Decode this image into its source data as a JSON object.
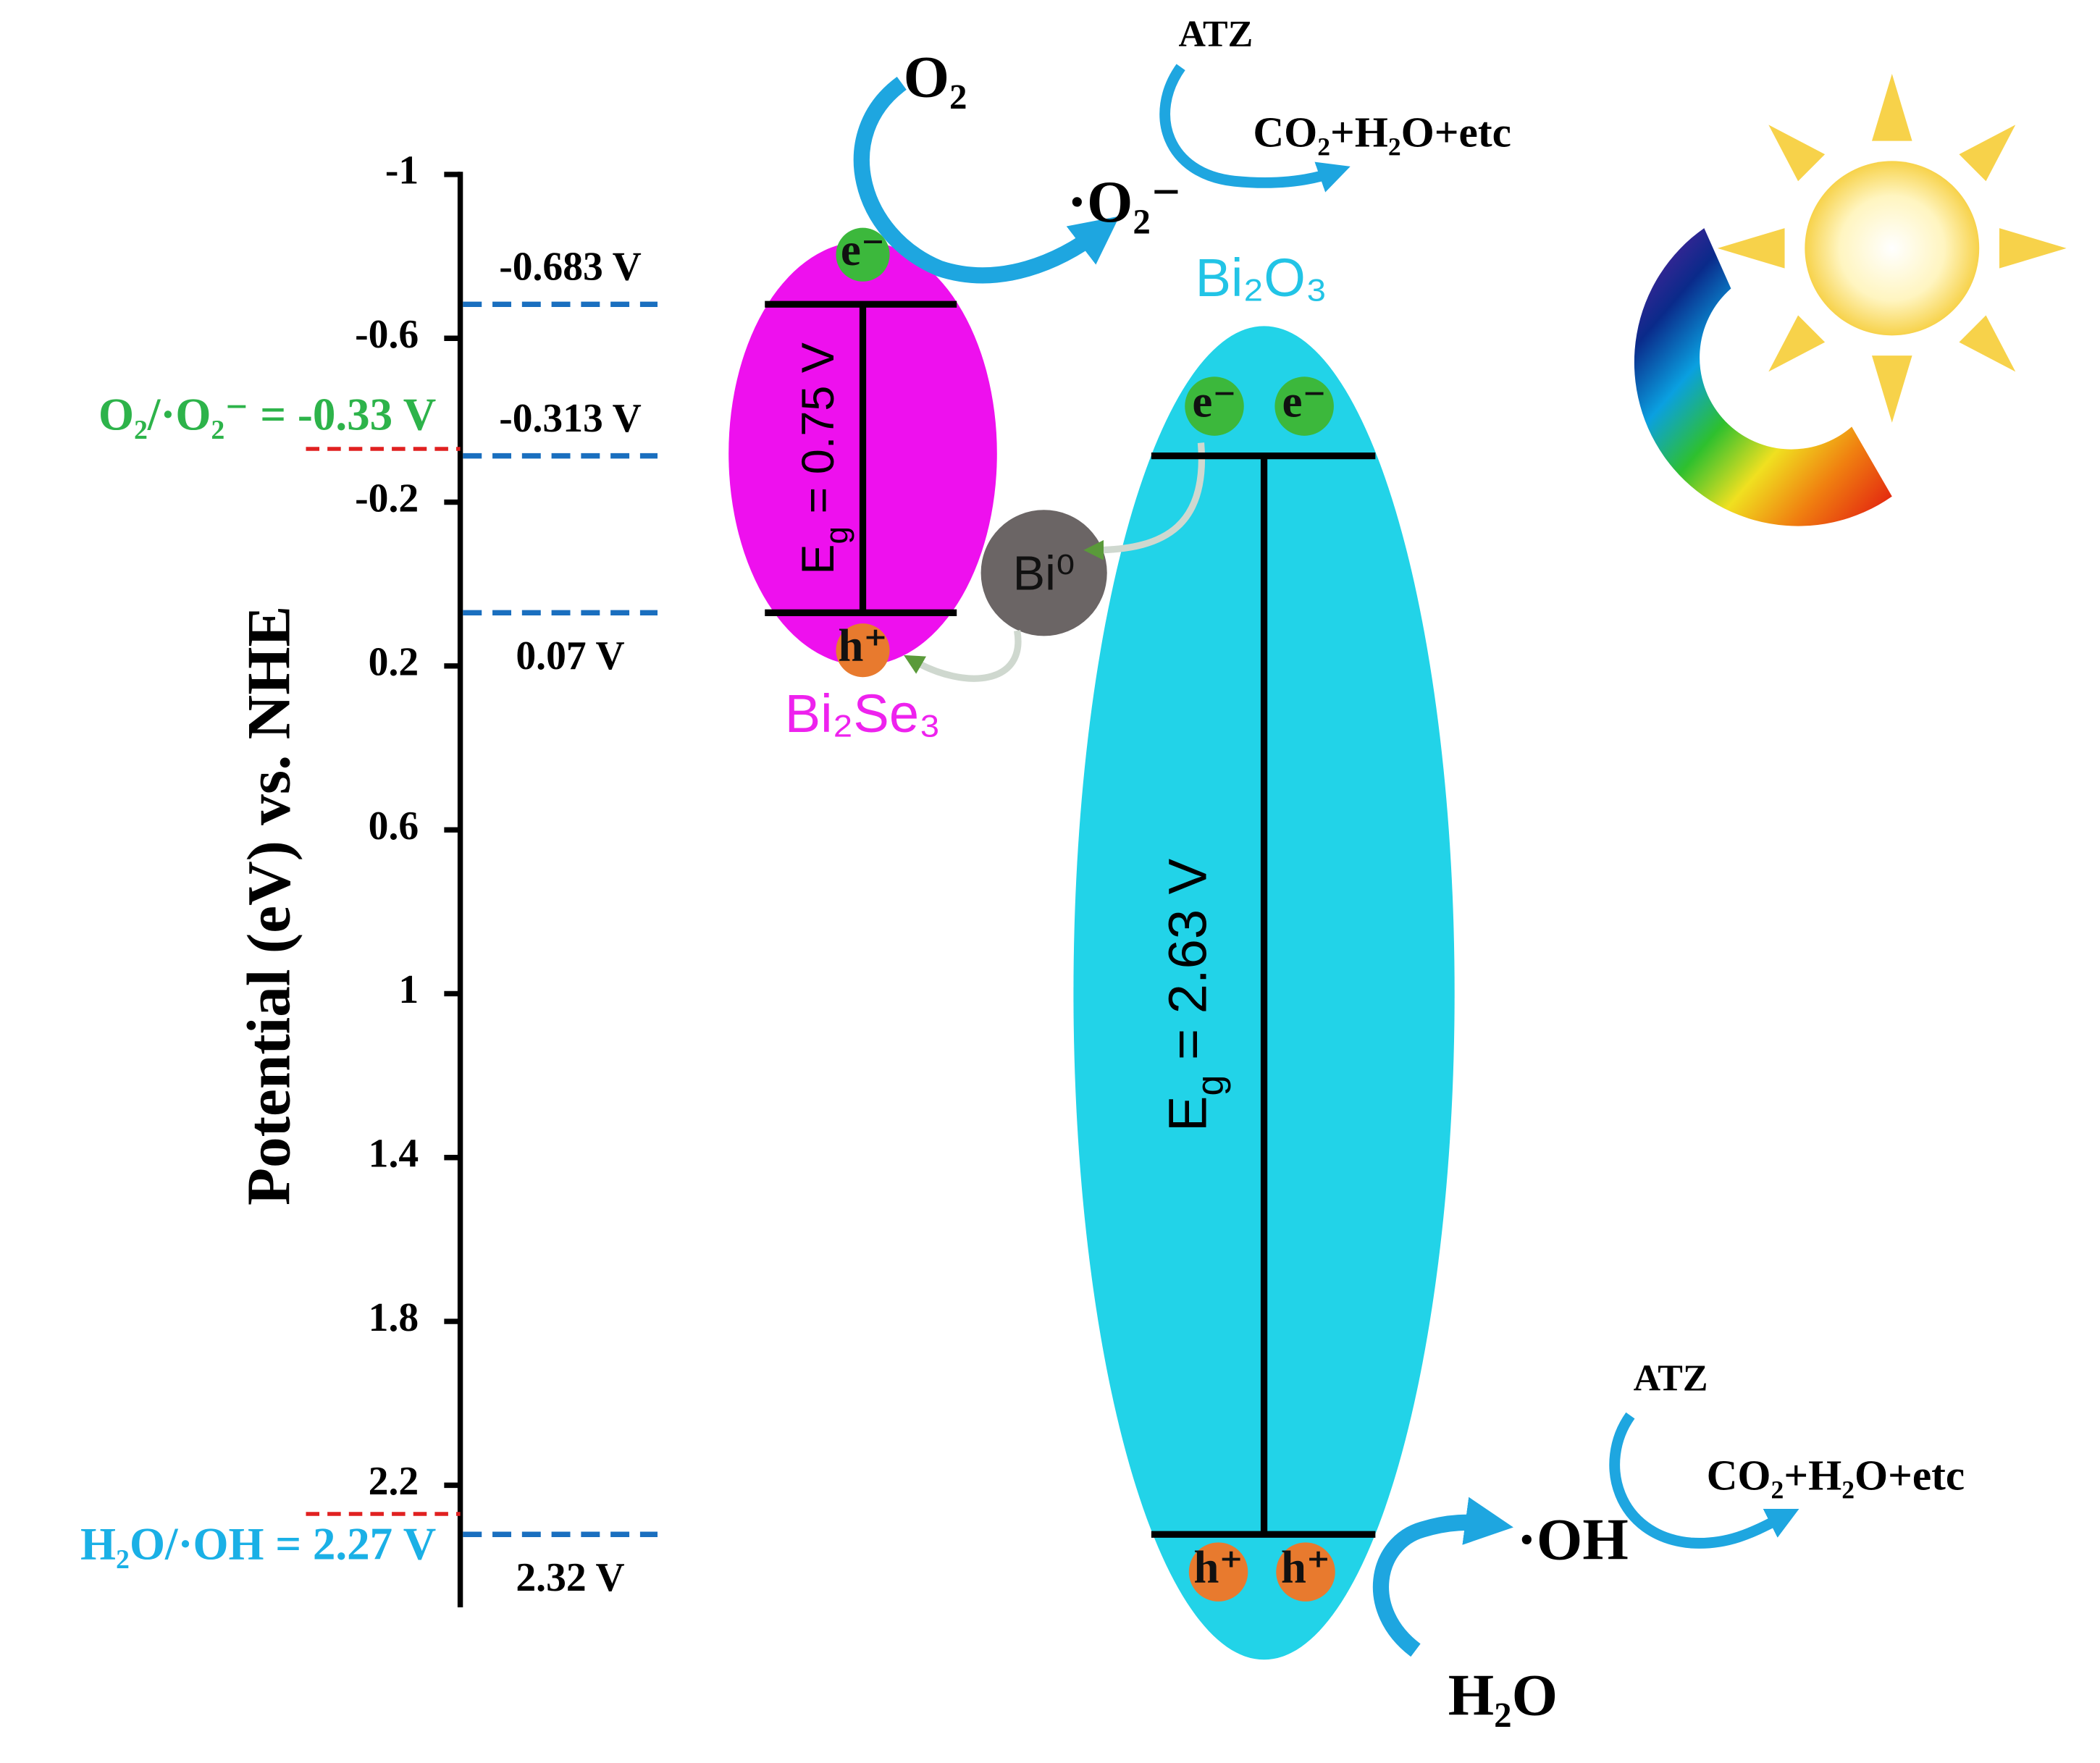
{
  "axis": {
    "label": "Potential (eV) vs. NHE",
    "ticks": [
      -1,
      -0.6,
      -0.2,
      0.2,
      0.6,
      1,
      1.4,
      1.8,
      2.2
    ]
  },
  "levels": [
    {
      "label": "-0.683 V",
      "value": -0.683
    },
    {
      "label": "-0.313 V",
      "value": -0.313
    },
    {
      "label": "0.07 V",
      "value": 0.07
    },
    {
      "label": "2.32 V",
      "value": 2.32
    }
  ],
  "redox": [
    {
      "label": "O₂/·O₂⁻ = -0.33 V",
      "value": -0.33,
      "color": "#2db34a"
    },
    {
      "label": "H₂O/·OH = 2.27 V",
      "value": 2.27,
      "color": "#1ab0e6"
    }
  ],
  "semiconductors": [
    {
      "name": "Bi₂Se₃",
      "gap": [
        "E",
        "g",
        " = 0.75 V"
      ],
      "color": "#ee10ee",
      "label_color": "#ee22ee",
      "electrons": [
        "e⁻"
      ],
      "holes": [
        "h⁺"
      ]
    },
    {
      "name": "Bi₂O₃",
      "gap": [
        "E",
        "g",
        " = 2.63 V"
      ],
      "color": "#22d3e8",
      "label_color": "#22c4e6",
      "electrons": [
        "e⁻",
        "e⁻"
      ],
      "holes": [
        "h⁺",
        "h⁺"
      ]
    }
  ],
  "bi0": "Bi⁰",
  "reduction": {
    "reactant": "O₂",
    "product": "·O₂⁻",
    "pollutant": "ATZ",
    "products": "CO₂+H₂O+etc"
  },
  "oxidation": {
    "reactant": "H₂O",
    "product": "·OH",
    "pollutant": "ATZ",
    "products": "CO₂+H₂O+etc"
  }
}
